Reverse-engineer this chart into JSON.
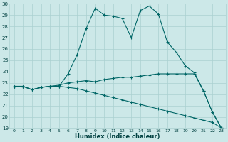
{
  "xlabel": "Humidex (Indice chaleur)",
  "background_color": "#cce8e8",
  "grid_color": "#aad0d0",
  "line_color": "#006666",
  "x_values": [
    0,
    1,
    2,
    3,
    4,
    5,
    6,
    7,
    8,
    9,
    10,
    11,
    12,
    13,
    14,
    15,
    16,
    17,
    18,
    19,
    20,
    21,
    22,
    23
  ],
  "line1": [
    22.7,
    22.7,
    22.4,
    22.6,
    22.7,
    22.7,
    23.8,
    25.5,
    27.8,
    29.6,
    29.0,
    28.9,
    28.7,
    27.0,
    29.4,
    29.8,
    29.1,
    26.6,
    25.7,
    24.5,
    23.9,
    22.3,
    20.4,
    19.0
  ],
  "line2": [
    22.7,
    22.7,
    22.4,
    22.6,
    22.7,
    22.8,
    23.0,
    23.1,
    23.2,
    23.1,
    23.3,
    23.4,
    23.5,
    23.5,
    23.6,
    23.7,
    23.8,
    23.8,
    23.8,
    23.8,
    23.8,
    22.3,
    20.4,
    19.0
  ],
  "line3": [
    22.7,
    22.7,
    22.4,
    22.6,
    22.7,
    22.7,
    22.6,
    22.5,
    22.3,
    22.1,
    21.9,
    21.7,
    21.5,
    21.3,
    21.1,
    20.9,
    20.7,
    20.5,
    20.3,
    20.1,
    19.9,
    19.7,
    19.5,
    19.0
  ],
  "ylim": [
    19,
    30
  ],
  "yticks": [
    19,
    20,
    21,
    22,
    23,
    24,
    25,
    26,
    27,
    28,
    29,
    30
  ],
  "xticks": [
    0,
    1,
    2,
    3,
    4,
    5,
    6,
    7,
    8,
    9,
    10,
    11,
    12,
    13,
    14,
    15,
    16,
    17,
    18,
    19,
    20,
    21,
    22,
    23
  ]
}
